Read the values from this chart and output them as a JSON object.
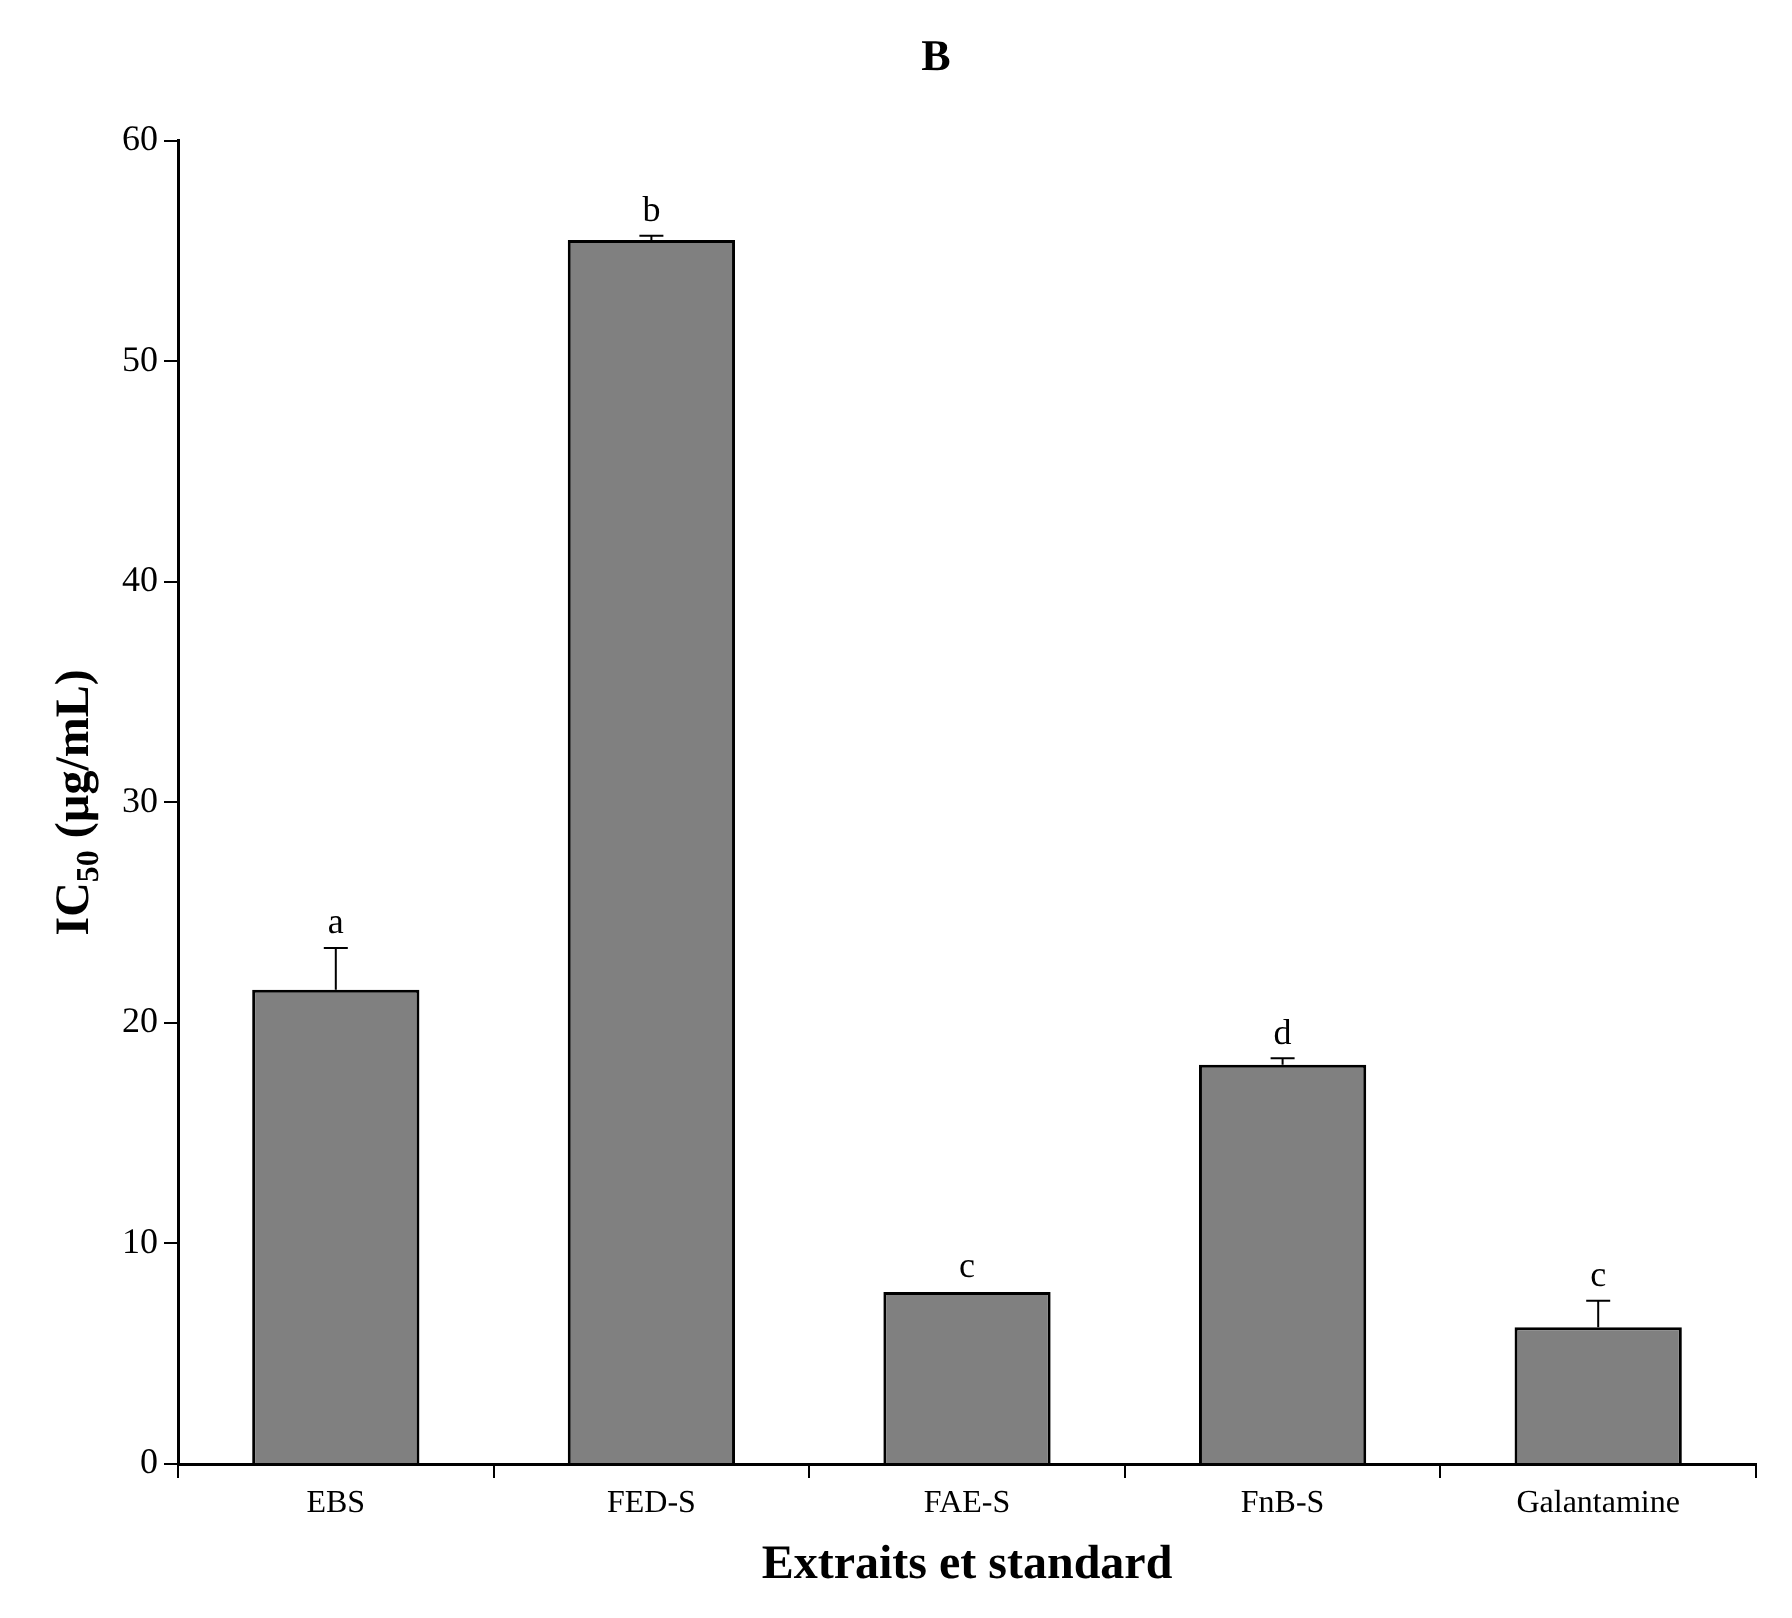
{
  "chart_data": {
    "type": "bar",
    "title": "B",
    "xlabel": "Extraits et standard",
    "ylabel": "IC$_{50}$ (µg/mL)",
    "categories": [
      "EBS",
      "FED-S",
      "FAE-S",
      "FnB-S",
      "Galantamine"
    ],
    "values": [
      21.5,
      55.5,
      7.8,
      18.1,
      6.2
    ],
    "errors": [
      1.9,
      0.2,
      null,
      0.3,
      1.2
    ],
    "color": "#808080",
    "ylim": [
      0,
      60
    ],
    "yticks": [
      0,
      10,
      20,
      30,
      40,
      50,
      60
    ],
    "grid": false,
    "legend": false,
    "annotations": [
      {
        "text": "a",
        "x": "EBS",
        "y": 23.4
      },
      {
        "text": "b",
        "x": "FED-S",
        "y": 55.7
      },
      {
        "text": "c",
        "x": "FAE-S",
        "y": 7.8
      },
      {
        "text": "d",
        "x": "FnB-S",
        "y": 18.4
      },
      {
        "text": "c",
        "x": "Galantamine",
        "y": 7.4
      }
    ]
  }
}
